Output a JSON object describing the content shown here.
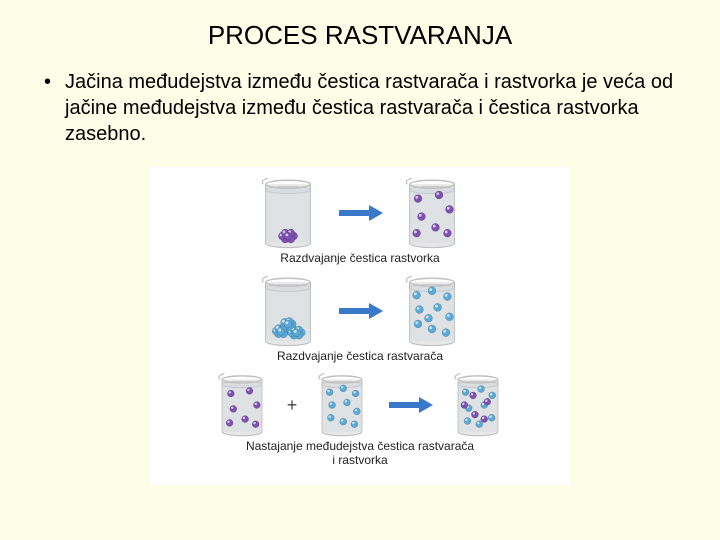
{
  "title": "PROCES RASTVARANJA",
  "bullet": {
    "marker": "•",
    "text": "Jačina međudejstva između čestica rastvarača i rastvorka je veća od jačine međudejstva između čestica rastvarača i čestica rastvorka zasebno."
  },
  "figure": {
    "background": "#ffffff",
    "arrow_color": "#3a78c9",
    "beaker_stroke": "#bfbfbf",
    "beaker_fill": "#e8e8e8",
    "liquid_fill": "#d8dde2",
    "solute_color": "#7e4fb0",
    "solvent_color": "#5aa9d6",
    "plus_symbol": "+",
    "rows": [
      {
        "caption": "Razdvajanje čestica rastvorka",
        "left": {
          "type": "solute_packed"
        },
        "right": {
          "type": "solute_dispersed"
        }
      },
      {
        "caption": "Razdvajanje čestica rastvarača",
        "left": {
          "type": "solvent_packed"
        },
        "right": {
          "type": "solvent_dispersed"
        }
      },
      {
        "caption": "Nastajanje međudejstva čestica rastvarača\ni rastvorka",
        "left_a": {
          "type": "solute_dispersed"
        },
        "left_b": {
          "type": "solvent_dispersed"
        },
        "right": {
          "type": "mixed"
        }
      }
    ]
  }
}
